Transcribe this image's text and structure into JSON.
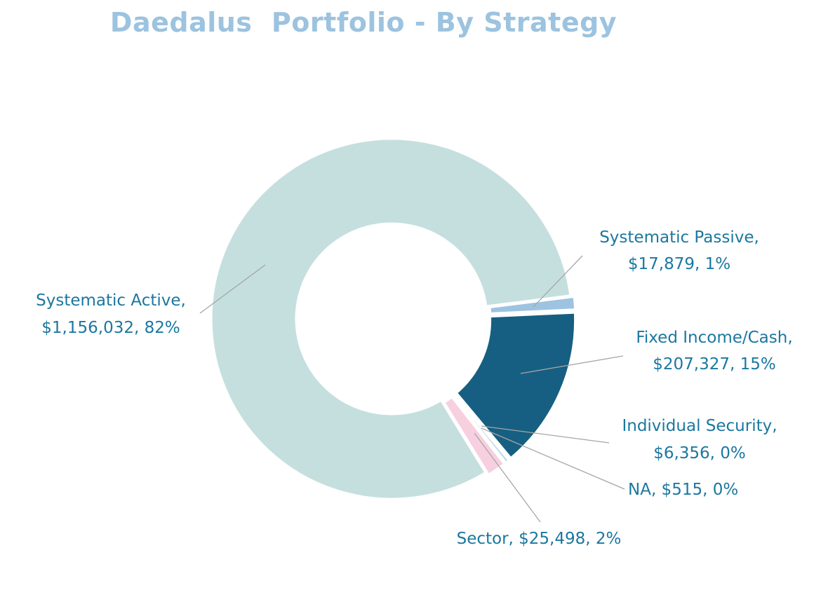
{
  "chart_data": {
    "type": "pie",
    "variant": "donut",
    "title": "Daedalus  Portfolio - By Strategy",
    "legend": "none",
    "slices": [
      {
        "label": "Systematic Passive",
        "value": 17879,
        "display": "$17,879",
        "percent": "1%",
        "color": "#9dc3e0"
      },
      {
        "label": "Fixed Income/Cash",
        "value": 207327,
        "display": "$207,327",
        "percent": "15%",
        "color": "#165f82"
      },
      {
        "label": "Individual Security",
        "value": 6356,
        "display": "$6,356",
        "percent": "0%",
        "color": "#b5d9e6"
      },
      {
        "label": "NA",
        "value": 515,
        "display": "$515",
        "percent": "0%",
        "color": "#d9e8ee"
      },
      {
        "label": "Sector",
        "value": 25498,
        "display": "$25,498",
        "percent": "2%",
        "color": "#f7d0e0"
      },
      {
        "label": "Systematic Active",
        "value": 1156032,
        "display": "$1,156,032",
        "percent": "82%",
        "color": "#c5dfdf"
      }
    ],
    "label_color": "#1b77a0",
    "title_color": "#9cc3df",
    "leader_line_color": "#a6a6a6"
  }
}
